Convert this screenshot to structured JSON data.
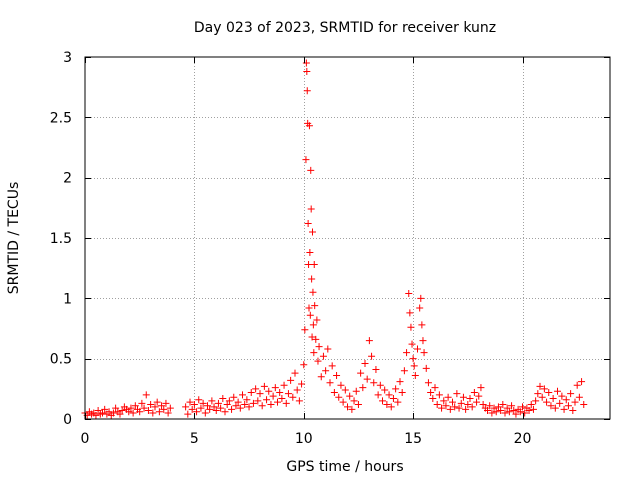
{
  "chart_data": {
    "type": "scatter",
    "title": "Day 023 of 2023, SRMTID for receiver kunz",
    "xlabel": "GPS time / hours",
    "ylabel": "SRMTID / TECUs",
    "xlim": [
      0,
      24
    ],
    "ylim": [
      0,
      3
    ],
    "xticks": [
      0,
      5,
      10,
      15,
      20
    ],
    "xtick_labels": [
      "0",
      "5",
      "10",
      "15",
      "20"
    ],
    "yticks": [
      0,
      0.5,
      1,
      1.5,
      2,
      2.5,
      3
    ],
    "ytick_labels": [
      "0",
      "0.5",
      "1",
      "1.5",
      "2",
      "2.5",
      "3"
    ],
    "grid": true,
    "marker": "+",
    "series": [
      {
        "name": "SRMTID",
        "color": "#ff0000",
        "points": [
          [
            0.0,
            0.05
          ],
          [
            0.1,
            0.03
          ],
          [
            0.2,
            0.06
          ],
          [
            0.3,
            0.04
          ],
          [
            0.4,
            0.05
          ],
          [
            0.5,
            0.03
          ],
          [
            0.6,
            0.07
          ],
          [
            0.7,
            0.04
          ],
          [
            0.8,
            0.05
          ],
          [
            0.9,
            0.08
          ],
          [
            1.0,
            0.04
          ],
          [
            1.1,
            0.06
          ],
          [
            1.2,
            0.03
          ],
          [
            1.3,
            0.05
          ],
          [
            1.4,
            0.09
          ],
          [
            1.5,
            0.06
          ],
          [
            1.6,
            0.04
          ],
          [
            1.7,
            0.07
          ],
          [
            1.8,
            0.1
          ],
          [
            1.9,
            0.08
          ],
          [
            2.0,
            0.06
          ],
          [
            2.1,
            0.09
          ],
          [
            2.2,
            0.05
          ],
          [
            2.3,
            0.11
          ],
          [
            2.4,
            0.08
          ],
          [
            2.5,
            0.06
          ],
          [
            2.6,
            0.13
          ],
          [
            2.7,
            0.09
          ],
          [
            2.8,
            0.2
          ],
          [
            2.9,
            0.07
          ],
          [
            3.0,
            0.12
          ],
          [
            3.1,
            0.05
          ],
          [
            3.2,
            0.1
          ],
          [
            3.3,
            0.14
          ],
          [
            3.4,
            0.06
          ],
          [
            3.5,
            0.11
          ],
          [
            3.6,
            0.08
          ],
          [
            3.7,
            0.13
          ],
          [
            3.8,
            0.05
          ],
          [
            3.9,
            0.09
          ],
          [
            4.6,
            0.1
          ],
          [
            4.7,
            0.04
          ],
          [
            4.8,
            0.14
          ],
          [
            4.9,
            0.08
          ],
          [
            5.0,
            0.12
          ],
          [
            5.1,
            0.06
          ],
          [
            5.2,
            0.16
          ],
          [
            5.3,
            0.09
          ],
          [
            5.4,
            0.13
          ],
          [
            5.5,
            0.05
          ],
          [
            5.6,
            0.11
          ],
          [
            5.7,
            0.08
          ],
          [
            5.8,
            0.15
          ],
          [
            5.9,
            0.1
          ],
          [
            6.0,
            0.07
          ],
          [
            6.1,
            0.13
          ],
          [
            6.2,
            0.09
          ],
          [
            6.3,
            0.17
          ],
          [
            6.4,
            0.06
          ],
          [
            6.5,
            0.12
          ],
          [
            6.6,
            0.15
          ],
          [
            6.7,
            0.08
          ],
          [
            6.8,
            0.18
          ],
          [
            6.9,
            0.11
          ],
          [
            7.0,
            0.14
          ],
          [
            7.1,
            0.09
          ],
          [
            7.2,
            0.2
          ],
          [
            7.3,
            0.12
          ],
          [
            7.4,
            0.16
          ],
          [
            7.5,
            0.1
          ],
          [
            7.6,
            0.22
          ],
          [
            7.7,
            0.13
          ],
          [
            7.8,
            0.25
          ],
          [
            7.9,
            0.15
          ],
          [
            8.0,
            0.21
          ],
          [
            8.1,
            0.11
          ],
          [
            8.2,
            0.27
          ],
          [
            8.3,
            0.16
          ],
          [
            8.4,
            0.23
          ],
          [
            8.5,
            0.12
          ],
          [
            8.6,
            0.19
          ],
          [
            8.7,
            0.26
          ],
          [
            8.8,
            0.14
          ],
          [
            8.9,
            0.22
          ],
          [
            9.0,
            0.17
          ],
          [
            9.1,
            0.28
          ],
          [
            9.2,
            0.13
          ],
          [
            9.3,
            0.21
          ],
          [
            9.4,
            0.32
          ],
          [
            9.5,
            0.18
          ],
          [
            9.6,
            0.38
          ],
          [
            9.7,
            0.24
          ],
          [
            9.8,
            0.15
          ],
          [
            9.9,
            0.29
          ],
          [
            10.0,
            0.45
          ],
          [
            10.05,
            0.74
          ],
          [
            10.1,
            2.15
          ],
          [
            10.12,
            2.95
          ],
          [
            10.14,
            2.88
          ],
          [
            10.16,
            2.72
          ],
          [
            10.18,
            2.45
          ],
          [
            10.2,
            1.62
          ],
          [
            10.22,
            1.28
          ],
          [
            10.24,
            0.92
          ],
          [
            10.26,
            2.43
          ],
          [
            10.28,
            1.38
          ],
          [
            10.3,
            0.86
          ],
          [
            10.32,
            2.06
          ],
          [
            10.34,
            1.74
          ],
          [
            10.36,
            1.16
          ],
          [
            10.38,
            0.68
          ],
          [
            10.4,
            1.55
          ],
          [
            10.42,
            1.05
          ],
          [
            10.44,
            0.78
          ],
          [
            10.46,
            0.55
          ],
          [
            10.48,
            1.28
          ],
          [
            10.5,
            0.94
          ],
          [
            10.55,
            0.66
          ],
          [
            10.6,
            0.82
          ],
          [
            10.65,
            0.48
          ],
          [
            10.7,
            0.6
          ],
          [
            10.8,
            0.35
          ],
          [
            10.9,
            0.52
          ],
          [
            11.0,
            0.4
          ],
          [
            11.1,
            0.58
          ],
          [
            11.2,
            0.3
          ],
          [
            11.3,
            0.44
          ],
          [
            11.4,
            0.22
          ],
          [
            11.5,
            0.36
          ],
          [
            11.6,
            0.18
          ],
          [
            11.7,
            0.28
          ],
          [
            11.8,
            0.14
          ],
          [
            11.9,
            0.24
          ],
          [
            12.0,
            0.1
          ],
          [
            12.1,
            0.19
          ],
          [
            12.2,
            0.08
          ],
          [
            12.3,
            0.15
          ],
          [
            12.4,
            0.23
          ],
          [
            12.5,
            0.12
          ],
          [
            12.6,
            0.38
          ],
          [
            12.7,
            0.26
          ],
          [
            12.8,
            0.46
          ],
          [
            12.9,
            0.33
          ],
          [
            13.0,
            0.65
          ],
          [
            13.1,
            0.52
          ],
          [
            13.2,
            0.3
          ],
          [
            13.3,
            0.41
          ],
          [
            13.4,
            0.2
          ],
          [
            13.5,
            0.28
          ],
          [
            13.6,
            0.15
          ],
          [
            13.7,
            0.24
          ],
          [
            13.8,
            0.12
          ],
          [
            13.9,
            0.2
          ],
          [
            14.0,
            0.1
          ],
          [
            14.1,
            0.17
          ],
          [
            14.2,
            0.25
          ],
          [
            14.3,
            0.14
          ],
          [
            14.4,
            0.31
          ],
          [
            14.5,
            0.22
          ],
          [
            14.6,
            0.4
          ],
          [
            14.7,
            0.55
          ],
          [
            14.8,
            1.04
          ],
          [
            14.85,
            0.88
          ],
          [
            14.9,
            0.76
          ],
          [
            14.95,
            0.62
          ],
          [
            15.0,
            0.5
          ],
          [
            15.05,
            0.44
          ],
          [
            15.1,
            0.36
          ],
          [
            15.2,
            0.58
          ],
          [
            15.3,
            0.92
          ],
          [
            15.35,
            1.0
          ],
          [
            15.4,
            0.78
          ],
          [
            15.45,
            0.65
          ],
          [
            15.5,
            0.55
          ],
          [
            15.6,
            0.42
          ],
          [
            15.7,
            0.3
          ],
          [
            15.8,
            0.22
          ],
          [
            15.9,
            0.17
          ],
          [
            16.0,
            0.26
          ],
          [
            16.1,
            0.12
          ],
          [
            16.2,
            0.2
          ],
          [
            16.3,
            0.09
          ],
          [
            16.4,
            0.15
          ],
          [
            16.5,
            0.11
          ],
          [
            16.6,
            0.18
          ],
          [
            16.7,
            0.08
          ],
          [
            16.8,
            0.14
          ],
          [
            16.9,
            0.1
          ],
          [
            17.0,
            0.21
          ],
          [
            17.1,
            0.09
          ],
          [
            17.2,
            0.13
          ],
          [
            17.3,
            0.18
          ],
          [
            17.4,
            0.08
          ],
          [
            17.5,
            0.12
          ],
          [
            17.6,
            0.17
          ],
          [
            17.7,
            0.1
          ],
          [
            17.8,
            0.22
          ],
          [
            17.9,
            0.14
          ],
          [
            18.0,
            0.19
          ],
          [
            18.1,
            0.26
          ],
          [
            18.2,
            0.12
          ],
          [
            18.3,
            0.09
          ],
          [
            18.4,
            0.07
          ],
          [
            18.5,
            0.11
          ],
          [
            18.6,
            0.05
          ],
          [
            18.7,
            0.09
          ],
          [
            18.8,
            0.06
          ],
          [
            18.9,
            0.1
          ],
          [
            19.0,
            0.07
          ],
          [
            19.1,
            0.12
          ],
          [
            19.2,
            0.05
          ],
          [
            19.3,
            0.09
          ],
          [
            19.4,
            0.06
          ],
          [
            19.5,
            0.11
          ],
          [
            19.6,
            0.07
          ],
          [
            19.7,
            0.04
          ],
          [
            19.8,
            0.08
          ],
          [
            19.9,
            0.06
          ],
          [
            20.0,
            0.1
          ],
          [
            20.1,
            0.05
          ],
          [
            20.2,
            0.09
          ],
          [
            20.3,
            0.07
          ],
          [
            20.4,
            0.12
          ],
          [
            20.5,
            0.08
          ],
          [
            20.6,
            0.15
          ],
          [
            20.7,
            0.21
          ],
          [
            20.8,
            0.27
          ],
          [
            20.9,
            0.18
          ],
          [
            21.0,
            0.25
          ],
          [
            21.1,
            0.14
          ],
          [
            21.2,
            0.22
          ],
          [
            21.3,
            0.11
          ],
          [
            21.4,
            0.17
          ],
          [
            21.5,
            0.09
          ],
          [
            21.6,
            0.23
          ],
          [
            21.7,
            0.13
          ],
          [
            21.8,
            0.19
          ],
          [
            21.9,
            0.08
          ],
          [
            22.0,
            0.16
          ],
          [
            22.1,
            0.11
          ],
          [
            22.2,
            0.21
          ],
          [
            22.3,
            0.07
          ],
          [
            22.4,
            0.14
          ],
          [
            22.5,
            0.28
          ],
          [
            22.6,
            0.18
          ],
          [
            22.7,
            0.31
          ],
          [
            22.8,
            0.12
          ]
        ]
      }
    ]
  }
}
